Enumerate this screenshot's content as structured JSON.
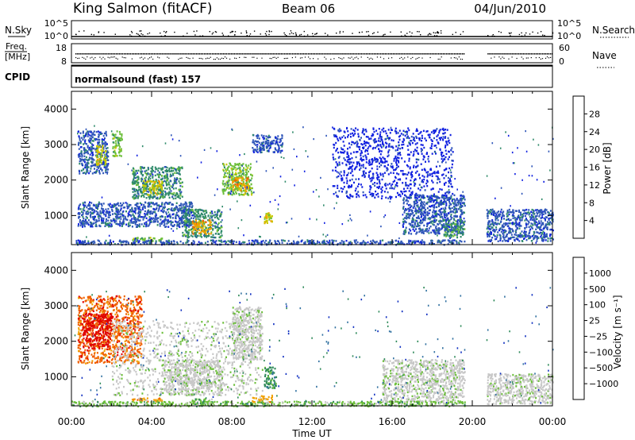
{
  "header": {
    "station": "King Salmon (fitACF)",
    "beam": "Beam 06",
    "date": "04/Jun/2010"
  },
  "panels": {
    "nsky_label": "N.Sky",
    "nsearch_label": "N.Search",
    "freq_label_line1": "Freq.",
    "freq_label_line2": "[MHz]",
    "nave_label": "Nave",
    "cpid_label": "CPID",
    "cpid_text": "normalsound (fast) 157",
    "nsky_ticks": [
      "10^5",
      "10^0"
    ],
    "nsearch_ticks": [
      "10^5",
      "10^0"
    ],
    "freq_ticks": [
      "18",
      "8"
    ],
    "nave_ticks": [
      "60",
      "0"
    ]
  },
  "chart_data": [
    {
      "type": "heatmap",
      "name": "power",
      "title": "",
      "xlabel": "Time UT",
      "ylabel": "Slant Range [km]",
      "xlim": [
        0,
        24
      ],
      "ylim": [
        180,
        4500
      ],
      "x_tick_labels": [
        "00:00",
        "04:00",
        "08:00",
        "12:00",
        "16:00",
        "20:00",
        "00:00"
      ],
      "y_tick_labels": [
        "1000",
        "2000",
        "3000",
        "4000"
      ],
      "y_ticks": [
        1000,
        2000,
        3000,
        4000
      ],
      "colorbar_label": "Power [dB]",
      "colorbar_ticks": [
        "4",
        "8",
        "12",
        "16",
        "20",
        "24",
        "28"
      ],
      "colorbar_colors": [
        "#1020e0",
        "#2e55b8",
        "#2f8a6a",
        "#6cbf3a",
        "#c8c800",
        "#f0a000",
        "#f06000",
        "#e00000"
      ],
      "data_gap_hours": [
        19.6,
        20.7
      ],
      "regions": [
        {
          "t": [
            0.3,
            1.8
          ],
          "r": [
            2200,
            3400
          ],
          "level": 1
        },
        {
          "t": [
            1.2,
            1.7
          ],
          "r": [
            2400,
            3000
          ],
          "level": 4
        },
        {
          "t": [
            2.0,
            2.5
          ],
          "r": [
            2700,
            3400
          ],
          "level": 3
        },
        {
          "t": [
            0.3,
            6.0
          ],
          "r": [
            700,
            1400
          ],
          "level": 1
        },
        {
          "t": [
            3.0,
            5.5
          ],
          "r": [
            1500,
            2400
          ],
          "level": 2
        },
        {
          "t": [
            3.5,
            4.5
          ],
          "r": [
            1600,
            2000
          ],
          "level": 4
        },
        {
          "t": [
            5.5,
            7.5
          ],
          "r": [
            400,
            1200
          ],
          "level": 2
        },
        {
          "t": [
            6.0,
            7.0
          ],
          "r": [
            500,
            900
          ],
          "level": 5
        },
        {
          "t": [
            7.5,
            9.0
          ],
          "r": [
            1600,
            2500
          ],
          "level": 3
        },
        {
          "t": [
            8.0,
            8.8
          ],
          "r": [
            1700,
            2100
          ],
          "level": 5
        },
        {
          "t": [
            9.0,
            10.5
          ],
          "r": [
            2800,
            3300
          ],
          "level": 1
        },
        {
          "t": [
            9.6,
            10.0
          ],
          "r": [
            800,
            1100
          ],
          "level": 4
        },
        {
          "t": [
            3.0,
            4.5
          ],
          "r": [
            300,
            400
          ],
          "level": 3
        },
        {
          "t": [
            0.2,
            19.6
          ],
          "r": [
            200,
            330
          ],
          "level": 1
        },
        {
          "t": [
            16.5,
            19.6
          ],
          "r": [
            500,
            1600
          ],
          "level": 1
        },
        {
          "t": [
            18.5,
            19.6
          ],
          "r": [
            400,
            900
          ],
          "level": 2
        },
        {
          "t": [
            20.7,
            24.0
          ],
          "r": [
            300,
            1200
          ],
          "level": 1
        },
        {
          "t": [
            13.0,
            19.0
          ],
          "r": [
            1500,
            3500
          ],
          "level": 0
        }
      ]
    },
    {
      "type": "heatmap",
      "name": "velocity",
      "title": "",
      "xlabel": "Time UT",
      "ylabel": "Slant Range [km]",
      "xlim": [
        0,
        24
      ],
      "ylim": [
        180,
        4500
      ],
      "x_tick_labels": [
        "00:00",
        "04:00",
        "08:00",
        "12:00",
        "16:00",
        "20:00",
        "00:00"
      ],
      "y_tick_labels": [
        "1000",
        "2000",
        "3000",
        "4000"
      ],
      "y_ticks": [
        1000,
        2000,
        3000,
        4000
      ],
      "colorbar_label": "Velocity [m s⁻¹]",
      "colorbar_ticks": [
        "1000",
        "500",
        "100",
        "25",
        "−25",
        "−100",
        "−500",
        "−1000"
      ],
      "colorbar_colors": [
        "#1030c0",
        "#3070a0",
        "#2f8a5a",
        "#6cbf3a",
        "#c8c8c8",
        "#c8c8c8",
        "#f0a000",
        "#f06000",
        "#e00000"
      ],
      "data_gap_hours": [
        19.6,
        20.7
      ],
      "regions": [
        {
          "t": [
            0.3,
            3.5
          ],
          "r": [
            1400,
            3300
          ],
          "level": 7
        },
        {
          "t": [
            0.5,
            2.0
          ],
          "r": [
            1800,
            2800
          ],
          "level": 8
        },
        {
          "t": [
            2.0,
            9.5
          ],
          "r": [
            500,
            2600
          ],
          "level": 4
        },
        {
          "t": [
            4.5,
            7.5
          ],
          "r": [
            500,
            1500
          ],
          "level": 4
        },
        {
          "t": [
            8.0,
            9.5
          ],
          "r": [
            1500,
            3000
          ],
          "level": 4
        },
        {
          "t": [
            9.6,
            10.2
          ],
          "r": [
            700,
            1300
          ],
          "level": 2
        },
        {
          "t": [
            3.0,
            4.5
          ],
          "r": [
            320,
            420
          ],
          "level": 6
        },
        {
          "t": [
            6.0,
            7.0
          ],
          "r": [
            250,
            400
          ],
          "level": 3
        },
        {
          "t": [
            9.0,
            10.0
          ],
          "r": [
            280,
            500
          ],
          "level": 6
        },
        {
          "t": [
            15.5,
            19.6
          ],
          "r": [
            300,
            1500
          ],
          "level": 4
        },
        {
          "t": [
            20.7,
            24.0
          ],
          "r": [
            250,
            1100
          ],
          "level": 4
        },
        {
          "t": [
            0.0,
            19.6
          ],
          "r": [
            190,
            330
          ],
          "level": 3
        }
      ]
    }
  ]
}
